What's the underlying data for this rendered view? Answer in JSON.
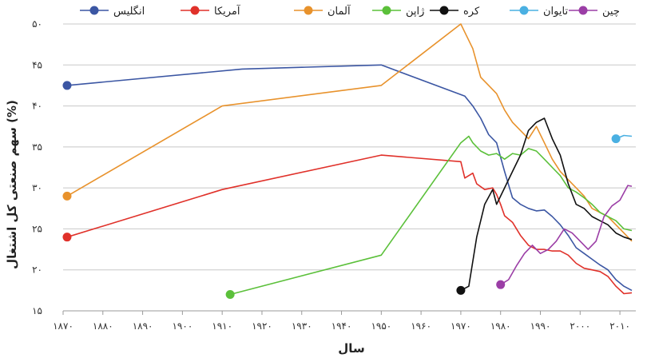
{
  "chart_data": {
    "type": "line",
    "xlabel": "سال",
    "ylabel": "سهم صنعتی کل اشتغال (%)",
    "xlim": [
      1870,
      2014
    ],
    "ylim": [
      15,
      50
    ],
    "x_ticks": [
      1870,
      1880,
      1890,
      1900,
      1910,
      1920,
      1930,
      1940,
      1950,
      1960,
      1970,
      1980,
      1990,
      2000,
      2010
    ],
    "x_tick_labels": [
      "۱۸۷۰",
      "۱۸۸۰",
      "۱۸۹۰",
      "۱۹۰۰",
      "۱۹۱۰",
      "۱۹۲۰",
      "۱۹۳۰",
      "۱۹۴۰",
      "۱۹۵۰",
      "۱۹۶۰",
      "۱۹۷۰",
      "۱۹۸۰",
      "۱۹۹۰",
      "۲۰۰۰",
      "۲۰۱۰"
    ],
    "y_ticks": [
      15,
      20,
      25,
      30,
      35,
      40,
      45,
      50
    ],
    "y_tick_labels": [
      "۱۵",
      "۲۰",
      "۲۵",
      "۳۰",
      "۳۵",
      "۴۰",
      "۴۵",
      "۵۰"
    ],
    "grid": "horizontal",
    "legend_position": "top",
    "series": [
      {
        "name": "انگلیس",
        "color": "#3b56a3",
        "x": [
          1871,
          1915,
          1950,
          1971,
          1973,
          1975,
          1977,
          1979,
          1981,
          1983,
          1985,
          1987,
          1989,
          1991,
          1993,
          1995,
          1997,
          1999,
          2001,
          2003,
          2005,
          2007,
          2009,
          2011,
          2013
        ],
        "y": [
          42.5,
          44.5,
          45,
          41.2,
          40,
          38.5,
          36.5,
          35.5,
          32,
          28.8,
          28,
          27.5,
          27.2,
          27.3,
          26.5,
          25.5,
          24.2,
          22.7,
          22,
          21.3,
          20.6,
          20,
          18.8,
          18,
          17.5
        ]
      },
      {
        "name": "آمریکا",
        "color": "#e0312a",
        "x": [
          1871,
          1910,
          1950,
          1970,
          1971,
          1973,
          1974,
          1976,
          1978,
          1979,
          1980,
          1981,
          1983,
          1985,
          1987,
          1989,
          1991,
          1993,
          1995,
          1997,
          1999,
          2001,
          2003,
          2005,
          2007,
          2009,
          2011,
          2013
        ],
        "y": [
          24,
          29.8,
          34,
          33.2,
          31.2,
          31.8,
          30.5,
          29.8,
          30,
          29.2,
          28,
          26.6,
          25.8,
          24.2,
          23,
          22.5,
          22.5,
          22.3,
          22.3,
          21.8,
          20.8,
          20.2,
          20,
          19.8,
          19.2,
          18,
          17.1,
          17.2
        ]
      },
      {
        "name": "آلمان",
        "color": "#e8922c",
        "x": [
          1871,
          1910,
          1950,
          1970,
          1971,
          1973,
          1975,
          1977,
          1979,
          1981,
          1983,
          1985,
          1987,
          1989,
          1991,
          1993,
          1995,
          1997,
          1999,
          2001,
          2003,
          2005,
          2007,
          2009,
          2011,
          2013
        ],
        "y": [
          29,
          40,
          42.5,
          50,
          49,
          47,
          43.5,
          42.5,
          41.5,
          39.5,
          38,
          37,
          36,
          37.5,
          35.5,
          33.5,
          32,
          31,
          30,
          29,
          27.5,
          27,
          26.5,
          25.5,
          24.5,
          23.5
        ]
      },
      {
        "name": "ژاپن",
        "color": "#5bc03a",
        "x": [
          1912,
          1950,
          1970,
          1972,
          1973,
          1975,
          1977,
          1979,
          1981,
          1983,
          1985,
          1987,
          1989,
          1991,
          1993,
          1995,
          1997,
          1999,
          2001,
          2003,
          2005,
          2007,
          2009,
          2011,
          2013
        ],
        "y": [
          17,
          21.8,
          35.5,
          36.3,
          35.5,
          34.5,
          34,
          34.2,
          33.5,
          34.2,
          34,
          34.8,
          34.5,
          33.5,
          32.5,
          31.5,
          30,
          29.5,
          28.8,
          28,
          27,
          26.5,
          26,
          25,
          24.8
        ]
      },
      {
        "name": "کره",
        "color": "#111111",
        "x": [
          1970,
          1972,
          1974,
          1976,
          1978,
          1979,
          1981,
          1983,
          1985,
          1987,
          1989,
          1991,
          1993,
          1995,
          1997,
          1999,
          2001,
          2003,
          2005,
          2007,
          2009,
          2011,
          2013
        ],
        "y": [
          17.5,
          18,
          24,
          28,
          29.8,
          28,
          30,
          32,
          34,
          37,
          38,
          38.5,
          36,
          34,
          30.5,
          28,
          27.5,
          26.5,
          26,
          25.5,
          24.5,
          24,
          23.7
        ]
      },
      {
        "name": "تایوان",
        "color": "#4ab0e2",
        "x": [
          2009,
          2011,
          2013
        ],
        "y": [
          36,
          36.4,
          36.3
        ]
      },
      {
        "name": "چین",
        "color": "#9b3ea6",
        "x": [
          1980,
          1982,
          1984,
          1986,
          1988,
          1990,
          1992,
          1994,
          1996,
          1998,
          2000,
          2002,
          2004,
          2006,
          2008,
          2010,
          2012,
          2013
        ],
        "y": [
          18.2,
          18.8,
          20.5,
          22,
          23,
          22,
          22.5,
          23.5,
          25,
          24.5,
          23.5,
          22.5,
          23.5,
          26.5,
          27.8,
          28.5,
          30.3,
          30.2
        ]
      }
    ]
  }
}
